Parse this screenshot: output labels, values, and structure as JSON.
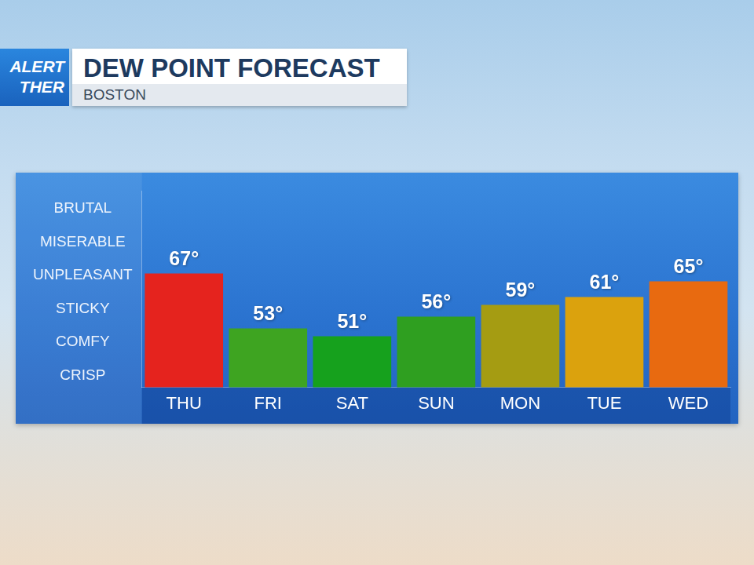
{
  "chart_data": {
    "type": "bar",
    "title": "DEW POINT FORECAST",
    "subtitle": "BOSTON",
    "annotations": [
      "ALERT",
      "THER"
    ],
    "categories": [
      "THU",
      "FRI",
      "SAT",
      "SUN",
      "MON",
      "TUE",
      "WED"
    ],
    "values": [
      67,
      53,
      51,
      56,
      59,
      61,
      65
    ],
    "value_labels": [
      "67°",
      "53°",
      "51°",
      "56°",
      "59°",
      "61°",
      "65°"
    ],
    "colors": [
      "#e5231e",
      "#3ea421",
      "#16a11d",
      "#2f9f20",
      "#a59c12",
      "#dba20d",
      "#e86a10"
    ],
    "ylim": [
      38,
      88
    ],
    "yticks": [
      {
        "value": 41,
        "label": "CRISP"
      },
      {
        "value": 49.5,
        "label": "COMFY"
      },
      {
        "value": 58,
        "label": "STICKY"
      },
      {
        "value": 66.5,
        "label": "UNPLEASANT"
      },
      {
        "value": 75,
        "label": "MISERABLE"
      },
      {
        "value": 83.5,
        "label": "BRUTAL"
      }
    ],
    "grid": false,
    "data_labels": true
  }
}
